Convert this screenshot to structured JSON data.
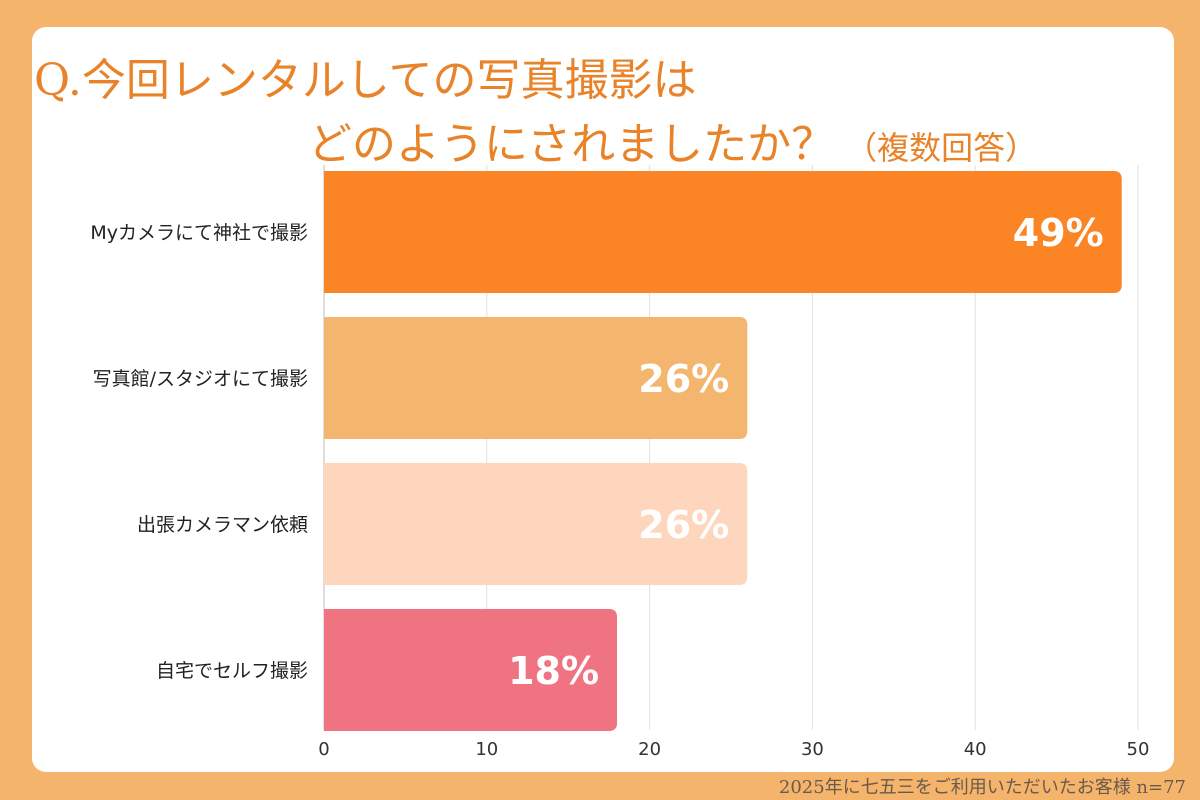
{
  "title": {
    "line1": "Q.今回レンタルしての写真撮影は",
    "line2": "どのようにされましたか？",
    "note": "（複数回答）"
  },
  "footnote": "2025年に七五三をご利用いただいたお客様  n=77",
  "colors": {
    "background": "#f5b46c",
    "title": "#e8832a"
  },
  "chart_data": {
    "type": "bar",
    "orientation": "horizontal",
    "categories": [
      "Myカメラにて神社で撮影",
      "写真館/スタジオにて撮影",
      "出張カメラマン依頼",
      "自宅でセルフ撮影"
    ],
    "values": [
      49,
      26,
      26,
      18
    ],
    "data_labels": [
      "49%",
      "26%",
      "26%",
      "18%"
    ],
    "bar_colors": [
      "#fb8424",
      "#f4b56e",
      "#fdd6bd",
      "#ef7380"
    ],
    "xlim": [
      0,
      50
    ],
    "xticks": [
      "0",
      "10",
      "20",
      "30",
      "40",
      "50"
    ],
    "grid": true
  }
}
